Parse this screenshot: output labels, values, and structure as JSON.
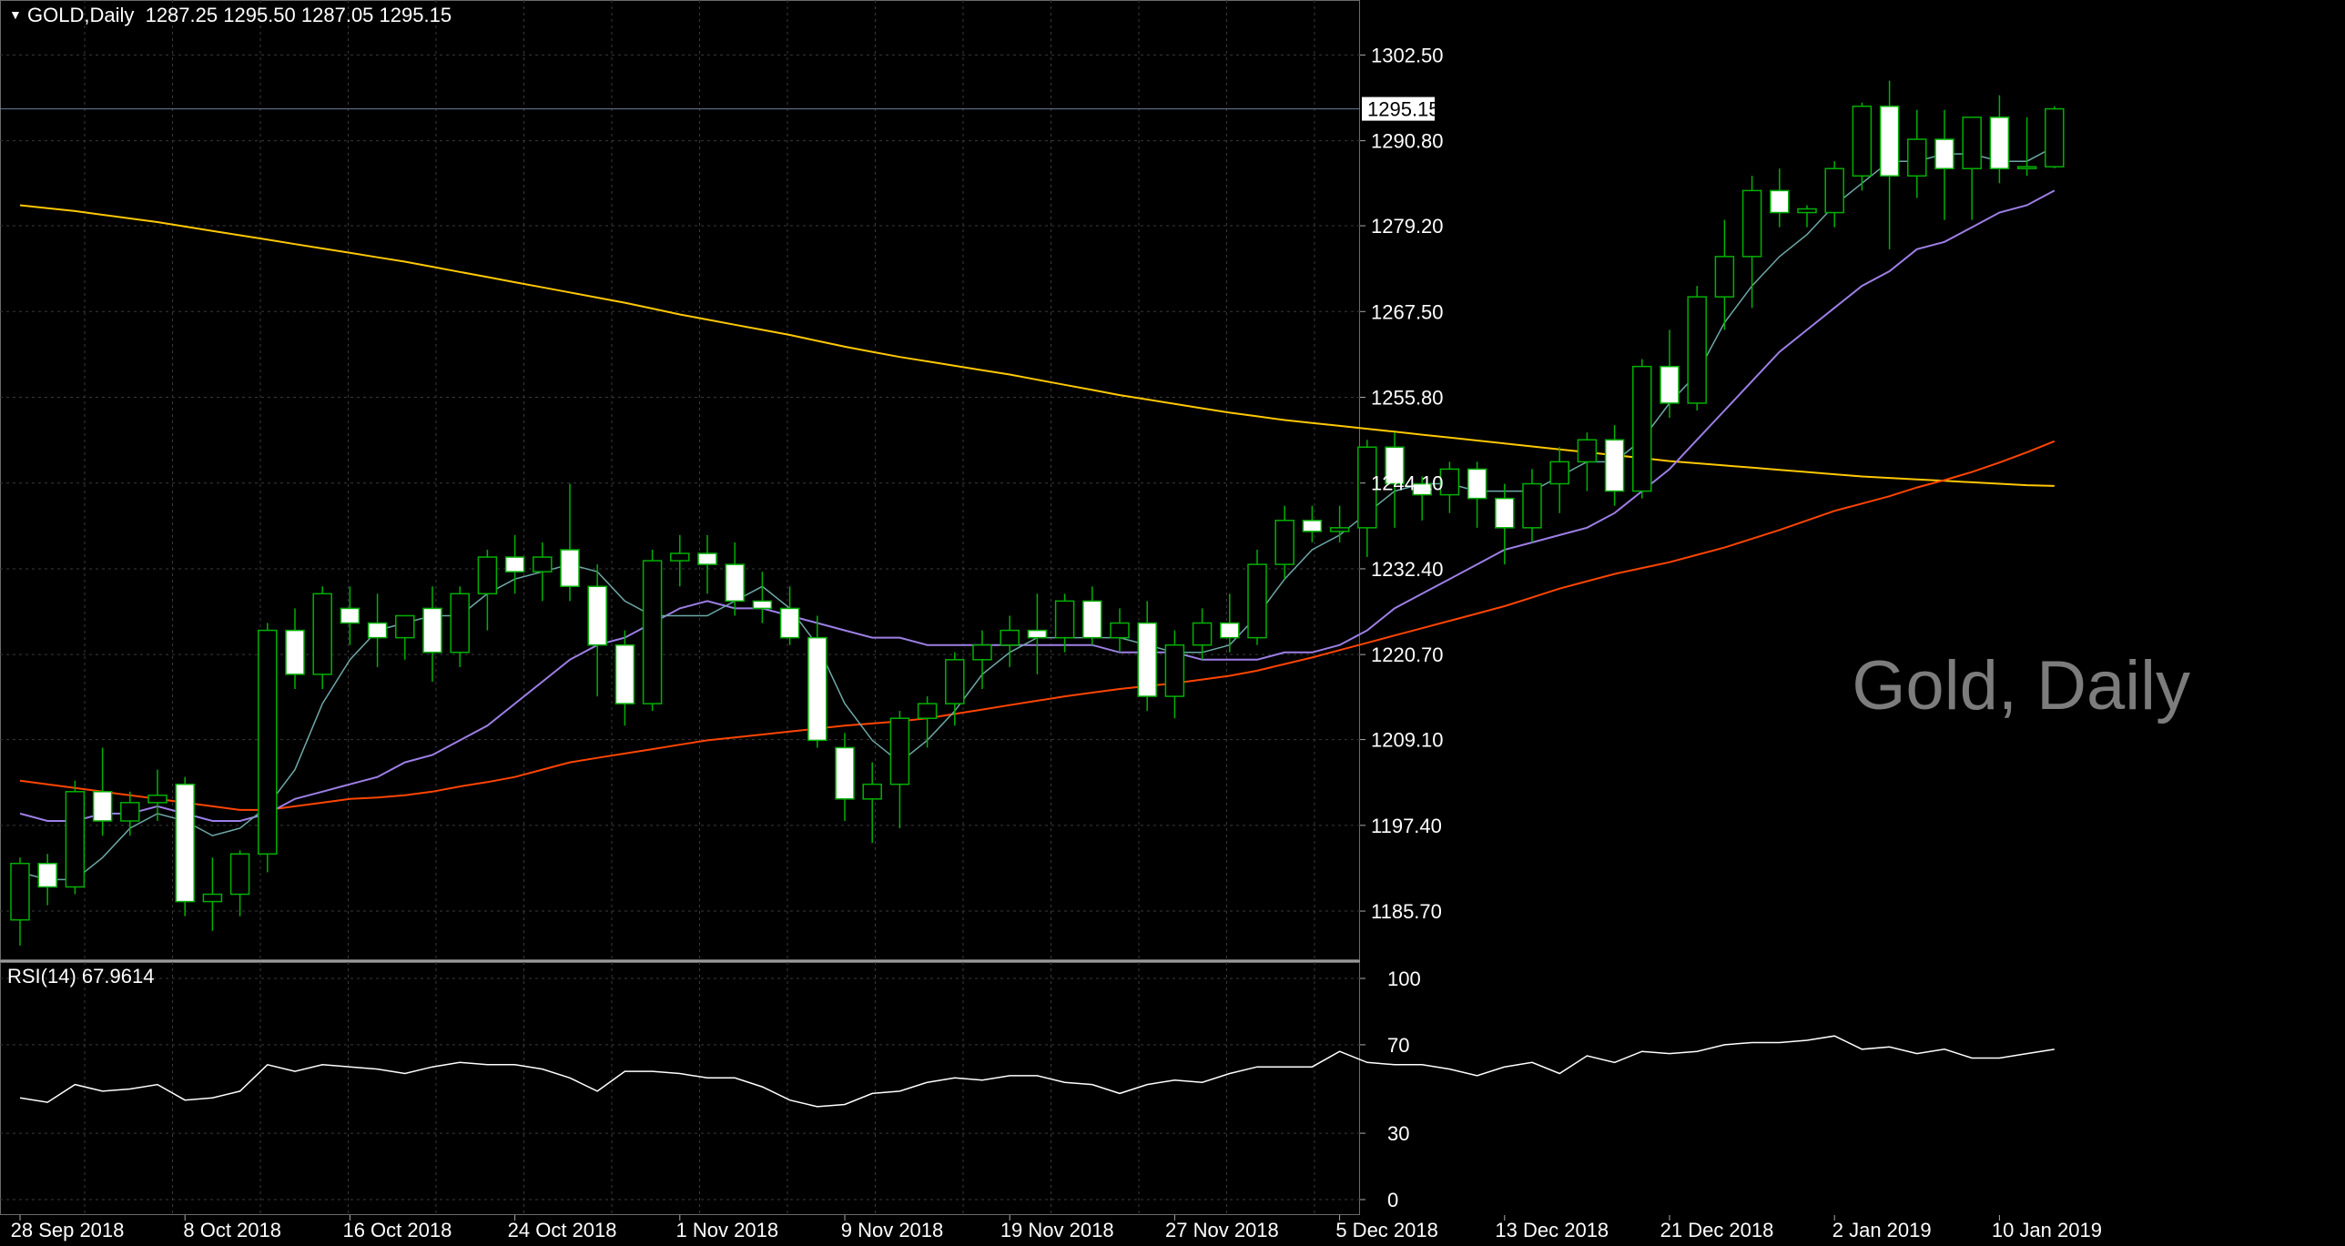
{
  "header": {
    "symbol": "GOLD,Daily",
    "open": "1287.25",
    "high": "1295.50",
    "low": "1287.05",
    "close": "1295.15"
  },
  "watermark": "Gold, Daily",
  "colors": {
    "bull": "#00b000",
    "bear": "#ffffff",
    "ma_short": "#6fa8a8",
    "ma_mid": "#9d7fe6",
    "ma_long": "#ff4500",
    "ma_200": "#ffc800",
    "rsi": "#ffffff",
    "grid": "#3a3a3a",
    "price_line": "#6d7f99"
  },
  "chart_data": [
    {
      "type": "candlestick",
      "title": "GOLD, Daily",
      "ylim": [
        1179.0,
        1310.0
      ],
      "y_ticks": [
        "1302.50",
        "1290.80",
        "1279.20",
        "1267.50",
        "1255.80",
        "1244.10",
        "1232.40",
        "1220.70",
        "1209.10",
        "1197.40",
        "1185.70"
      ],
      "x_ticks": [
        {
          "index": 0,
          "label": "28 Sep 2018"
        },
        {
          "index": 6,
          "label": "8 Oct 2018"
        },
        {
          "index": 12,
          "label": "16 Oct 2018"
        },
        {
          "index": 18,
          "label": "24 Oct 2018"
        },
        {
          "index": 24,
          "label": "1 Nov 2018"
        },
        {
          "index": 30,
          "label": "9 Nov 2018"
        },
        {
          "index": 36,
          "label": "19 Nov 2018"
        },
        {
          "index": 42,
          "label": "27 Nov 2018"
        },
        {
          "index": 48,
          "label": "5 Dec 2018"
        },
        {
          "index": 54,
          "label": "13 Dec 2018"
        },
        {
          "index": 60,
          "label": "21 Dec 2018"
        },
        {
          "index": 66,
          "label": "2 Jan 2019"
        },
        {
          "index": 72,
          "label": "10 Jan 2019"
        }
      ],
      "current_price": "1295.15",
      "candles": [
        [
          1184.5,
          1193.0,
          1181.0,
          1192.2
        ],
        [
          1192.2,
          1193.5,
          1186.5,
          1189.0
        ],
        [
          1189.0,
          1203.5,
          1188.0,
          1202.0
        ],
        [
          1202.0,
          1208.0,
          1196.0,
          1198.0
        ],
        [
          1198.0,
          1202.0,
          1196.0,
          1200.5
        ],
        [
          1200.5,
          1205.0,
          1198.0,
          1201.5
        ],
        [
          1203.0,
          1204.0,
          1185.0,
          1187.0
        ],
        [
          1187.0,
          1193.0,
          1183.0,
          1188.0
        ],
        [
          1188.0,
          1194.0,
          1185.0,
          1193.5
        ],
        [
          1193.5,
          1225.0,
          1191.0,
          1224.0
        ],
        [
          1224.0,
          1227.0,
          1216.0,
          1218.0
        ],
        [
          1218.0,
          1230.0,
          1216.0,
          1229.0
        ],
        [
          1227.0,
          1230.0,
          1222.0,
          1225.0
        ],
        [
          1225.0,
          1229.0,
          1219.0,
          1223.0
        ],
        [
          1223.0,
          1226.0,
          1220.0,
          1226.0
        ],
        [
          1227.0,
          1230.0,
          1217.0,
          1221.0
        ],
        [
          1221.0,
          1230.0,
          1219.0,
          1229.0
        ],
        [
          1229.0,
          1235.0,
          1224.0,
          1234.0
        ],
        [
          1234.0,
          1237.0,
          1229.0,
          1232.0
        ],
        [
          1232.0,
          1236.0,
          1228.0,
          1234.0
        ],
        [
          1235.0,
          1244.0,
          1228.0,
          1230.0
        ],
        [
          1230.0,
          1233.0,
          1215.0,
          1222.0
        ],
        [
          1222.0,
          1224.0,
          1211.0,
          1214.0
        ],
        [
          1214.0,
          1235.0,
          1213.0,
          1233.5
        ],
        [
          1233.5,
          1237.0,
          1230.0,
          1234.5
        ],
        [
          1234.5,
          1237.0,
          1229.0,
          1233.0
        ],
        [
          1233.0,
          1236.0,
          1226.0,
          1228.0
        ],
        [
          1228.0,
          1232.0,
          1225.0,
          1227.0
        ],
        [
          1227.0,
          1230.0,
          1222.0,
          1223.0
        ],
        [
          1223.0,
          1226.0,
          1208.0,
          1209.0
        ],
        [
          1208.0,
          1210.0,
          1198.0,
          1201.0
        ],
        [
          1201.0,
          1206.0,
          1195.0,
          1203.0
        ],
        [
          1203.0,
          1213.0,
          1197.0,
          1212.0
        ],
        [
          1212.0,
          1215.0,
          1208.0,
          1214.0
        ],
        [
          1214.0,
          1221.0,
          1211.0,
          1220.0
        ],
        [
          1220.0,
          1224.0,
          1216.0,
          1222.0
        ],
        [
          1222.0,
          1226.0,
          1219.0,
          1224.0
        ],
        [
          1224.0,
          1229.0,
          1218.0,
          1223.0
        ],
        [
          1223.0,
          1229.0,
          1221.0,
          1228.0
        ],
        [
          1228.0,
          1230.0,
          1222.0,
          1223.0
        ],
        [
          1223.0,
          1227.0,
          1221.0,
          1225.0
        ],
        [
          1225.0,
          1228.0,
          1213.0,
          1215.0
        ],
        [
          1215.0,
          1224.0,
          1212.0,
          1222.0
        ],
        [
          1222.0,
          1227.0,
          1220.0,
          1225.0
        ],
        [
          1225.0,
          1229.0,
          1221.0,
          1223.0
        ],
        [
          1223.0,
          1235.0,
          1222.0,
          1233.0
        ],
        [
          1233.0,
          1241.0,
          1231.0,
          1239.0
        ],
        [
          1239.0,
          1241.0,
          1236.0,
          1237.5
        ],
        [
          1237.5,
          1241.0,
          1236.0,
          1238.0
        ],
        [
          1238.0,
          1250.0,
          1234.0,
          1249.0
        ],
        [
          1249.0,
          1251.0,
          1238.0,
          1244.0
        ],
        [
          1244.0,
          1245.0,
          1239.0,
          1242.5
        ],
        [
          1242.5,
          1247.0,
          1240.0,
          1246.0
        ],
        [
          1246.0,
          1247.0,
          1238.0,
          1242.0
        ],
        [
          1242.0,
          1244.0,
          1233.0,
          1238.0
        ],
        [
          1238.0,
          1246.0,
          1236.0,
          1244.0
        ],
        [
          1244.0,
          1249.0,
          1240.0,
          1247.0
        ],
        [
          1247.0,
          1251.0,
          1243.0,
          1250.0
        ],
        [
          1250.0,
          1252.0,
          1241.0,
          1243.0
        ],
        [
          1243.0,
          1261.0,
          1242.0,
          1260.0
        ],
        [
          1260.0,
          1265.0,
          1253.0,
          1255.0
        ],
        [
          1255.0,
          1271.0,
          1254.0,
          1269.5
        ],
        [
          1269.5,
          1280.0,
          1265.0,
          1275.0
        ],
        [
          1275.0,
          1286.0,
          1268.0,
          1284.0
        ],
        [
          1284.0,
          1287.0,
          1279.0,
          1281.0
        ],
        [
          1281.0,
          1282.0,
          1279.0,
          1281.5
        ],
        [
          1281.0,
          1288.0,
          1279.0,
          1287.0
        ],
        [
          1286.0,
          1296.0,
          1284.0,
          1295.5
        ],
        [
          1295.5,
          1299.0,
          1276.0,
          1286.0
        ],
        [
          1286.0,
          1295.0,
          1283.0,
          1291.0
        ],
        [
          1291.0,
          1295.0,
          1280.0,
          1287.0
        ],
        [
          1287.0,
          1294.0,
          1280.0,
          1294.0
        ],
        [
          1294.0,
          1297.0,
          1285.0,
          1287.0
        ],
        [
          1287.0,
          1294.0,
          1286.0,
          1287.25
        ],
        [
          1287.25,
          1295.5,
          1287.05,
          1295.15
        ]
      ],
      "ma_short": [
        1191,
        1190,
        1190,
        1193,
        1197,
        1199,
        1198,
        1196,
        1197,
        1200,
        1205,
        1214,
        1220,
        1224,
        1225,
        1226,
        1226,
        1229,
        1231,
        1232,
        1233,
        1232,
        1228,
        1226,
        1226,
        1226,
        1228,
        1230,
        1227,
        1222,
        1214,
        1209,
        1206,
        1209,
        1213,
        1218,
        1221,
        1223,
        1223,
        1223,
        1223,
        1222,
        1221,
        1221,
        1222,
        1226,
        1231,
        1235,
        1237,
        1240,
        1243,
        1244,
        1244,
        1243,
        1243,
        1243,
        1245,
        1247,
        1247,
        1250,
        1255,
        1259,
        1266,
        1271,
        1275,
        1278,
        1282,
        1285,
        1288,
        1288,
        1289,
        1289,
        1288,
        1288,
        1290
      ],
      "ma_mid": [
        1199,
        1198,
        1198,
        1199,
        1199,
        1200,
        1199,
        1198,
        1198,
        1199,
        1201,
        1202,
        1203,
        1204,
        1206,
        1207,
        1209,
        1211,
        1214,
        1217,
        1220,
        1222,
        1223,
        1225,
        1227,
        1228,
        1227,
        1227,
        1226,
        1225,
        1224,
        1223,
        1223,
        1222,
        1222,
        1222,
        1222,
        1222,
        1222,
        1222,
        1221,
        1221,
        1221,
        1220,
        1220,
        1220,
        1221,
        1221,
        1222,
        1224,
        1227,
        1229,
        1231,
        1233,
        1235,
        1236,
        1237,
        1238,
        1240,
        1243,
        1246,
        1250,
        1254,
        1258,
        1262,
        1265,
        1268,
        1271,
        1273,
        1276,
        1277,
        1279,
        1281,
        1282,
        1284
      ],
      "ma_long": [
        1203.5,
        1203,
        1202.5,
        1202,
        1201.5,
        1201,
        1200.5,
        1200,
        1199.5,
        1199.5,
        1200,
        1200.5,
        1201,
        1201.2,
        1201.5,
        1202,
        1202.7,
        1203.3,
        1204,
        1205,
        1206,
        1206.6,
        1207.2,
        1207.8,
        1208.4,
        1209,
        1209.4,
        1209.8,
        1210.2,
        1210.6,
        1211,
        1211.3,
        1211.6,
        1212,
        1212.6,
        1213.2,
        1213.8,
        1214.4,
        1215,
        1215.5,
        1216,
        1216.4,
        1216.8,
        1217.3,
        1217.8,
        1218.5,
        1219.4,
        1220.3,
        1221.3,
        1222.3,
        1223.3,
        1224.3,
        1225.3,
        1226.3,
        1227.3,
        1228.5,
        1229.7,
        1230.7,
        1231.7,
        1232.5,
        1233.3,
        1234.3,
        1235.3,
        1236.5,
        1237.7,
        1239,
        1240.3,
        1241.3,
        1242.3,
        1243.5,
        1244.5,
        1245.6,
        1246.9,
        1248.3,
        1249.8
      ],
      "ma_200": [
        1282,
        1281.6,
        1281.2,
        1280.7,
        1280.2,
        1279.7,
        1279.1,
        1278.5,
        1277.9,
        1277.3,
        1276.7,
        1276.1,
        1275.5,
        1274.9,
        1274.3,
        1273.6,
        1272.9,
        1272.2,
        1271.5,
        1270.8,
        1270.1,
        1269.4,
        1268.7,
        1267.9,
        1267.1,
        1266.4,
        1265.7,
        1265,
        1264.3,
        1263.5,
        1262.7,
        1262,
        1261.3,
        1260.7,
        1260.1,
        1259.5,
        1258.9,
        1258.2,
        1257.5,
        1256.8,
        1256.1,
        1255.5,
        1254.9,
        1254.3,
        1253.7,
        1253.2,
        1252.7,
        1252.3,
        1251.9,
        1251.5,
        1251.1,
        1250.7,
        1250.3,
        1249.9,
        1249.5,
        1249.1,
        1248.7,
        1248.3,
        1247.9,
        1247.5,
        1247.1,
        1246.8,
        1246.5,
        1246.2,
        1245.9,
        1245.6,
        1245.3,
        1245,
        1244.8,
        1244.6,
        1244.4,
        1244.2,
        1244,
        1243.8,
        1243.7
      ]
    },
    {
      "type": "line",
      "title": "RSI(14) 67.9614",
      "ylim": [
        0,
        100
      ],
      "y_ticks": [
        "100",
        "70",
        "30",
        "0"
      ],
      "series": [
        {
          "values": [
            46,
            44,
            52,
            49,
            50,
            52,
            45,
            46,
            49,
            61,
            58,
            61,
            60,
            59,
            57,
            60,
            62,
            61,
            61,
            59,
            55,
            49,
            58,
            58,
            57,
            55,
            55,
            51,
            45,
            42,
            43,
            48,
            49,
            53,
            55,
            54,
            56,
            56,
            53,
            52,
            48,
            52,
            54,
            53,
            57,
            60,
            60,
            60,
            67,
            62,
            61,
            61,
            59,
            56,
            60,
            62,
            57,
            65,
            62,
            67,
            66,
            67,
            70,
            71,
            71,
            72,
            74,
            68,
            69,
            66,
            68,
            64,
            64,
            66,
            67.96
          ]
        }
      ]
    }
  ]
}
